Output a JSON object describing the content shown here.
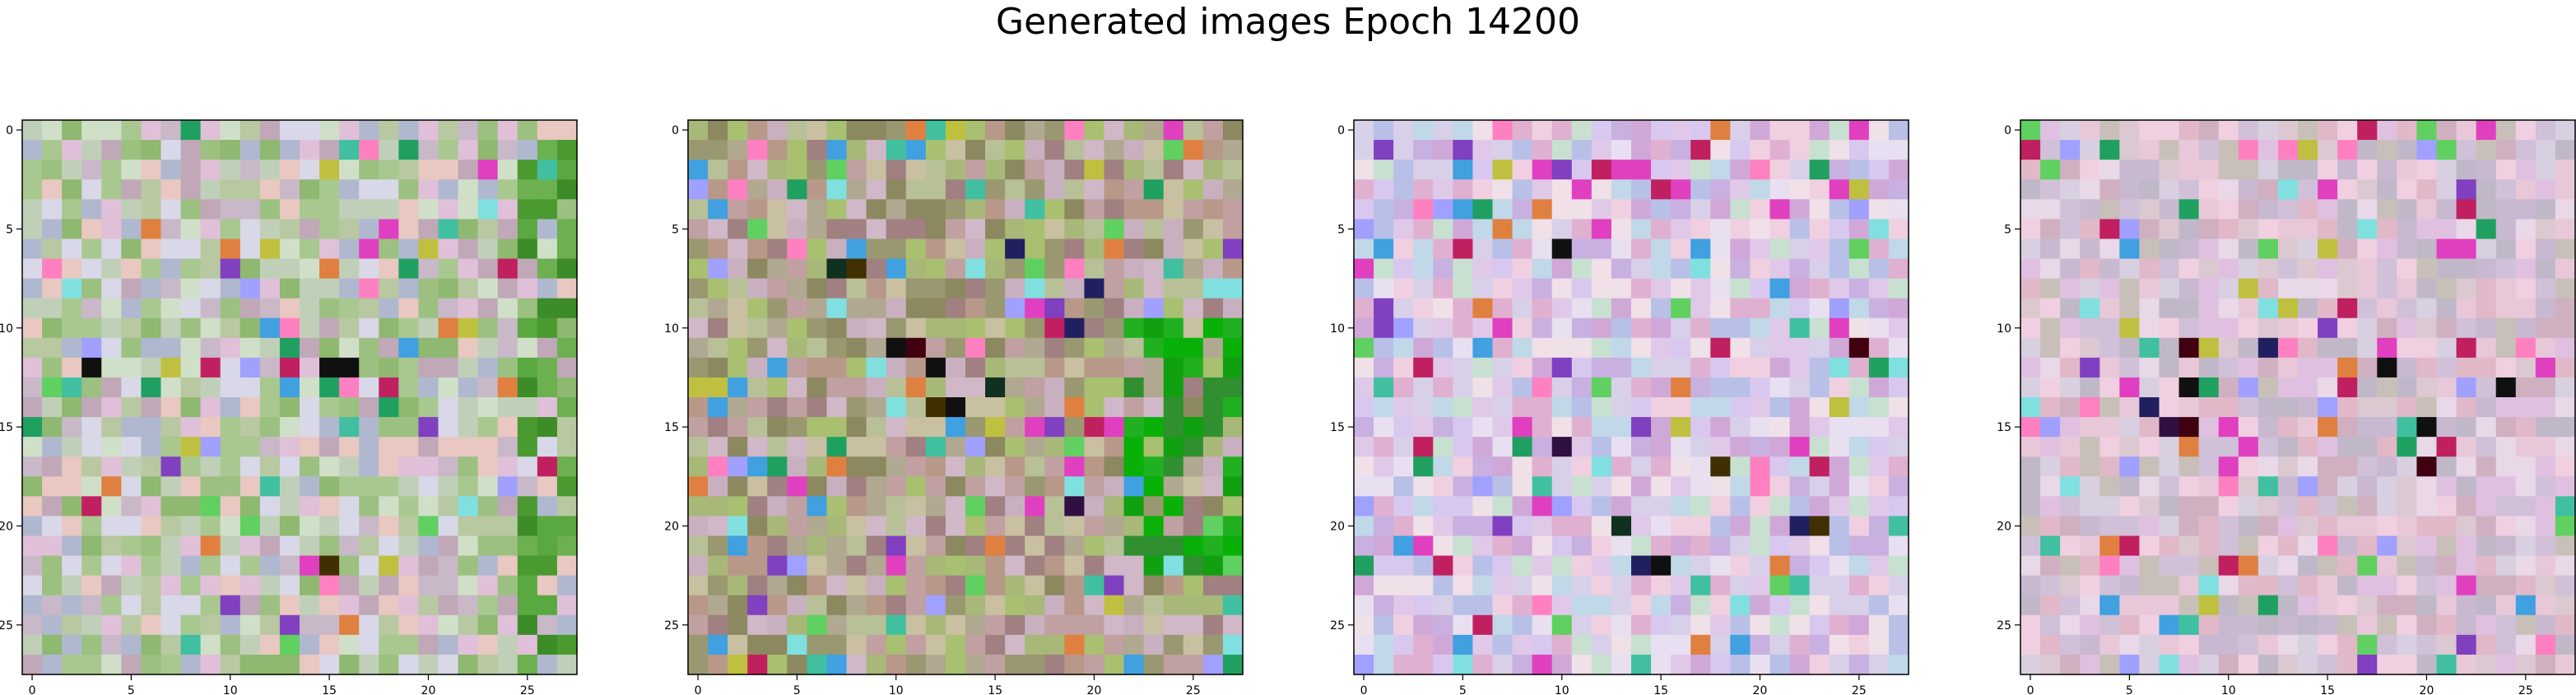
{
  "figure": {
    "title": "Generated images Epoch 14200"
  },
  "chart_data": [
    {
      "type": "heatmap",
      "index": 0,
      "rows": 28,
      "cols": 28,
      "xlim": [
        -0.5,
        27.5
      ],
      "ylim": [
        27.5,
        -0.5
      ],
      "xticks": [
        "0",
        "5",
        "10",
        "15",
        "20",
        "25"
      ],
      "yticks": [
        "0",
        "5",
        "10",
        "15",
        "20",
        "25"
      ],
      "tint": "green",
      "seed": 1,
      "dark_cells": [
        [
          12,
          3
        ],
        [
          12,
          15
        ],
        [
          12,
          16
        ],
        [
          22,
          15
        ]
      ]
    },
    {
      "type": "heatmap",
      "index": 1,
      "rows": 28,
      "cols": 28,
      "xlim": [
        -0.5,
        27.5
      ],
      "ylim": [
        27.5,
        -0.5
      ],
      "xticks": [
        "0",
        "5",
        "10",
        "15",
        "20",
        "25"
      ],
      "yticks": [
        "0",
        "5",
        "10",
        "15",
        "20",
        "25"
      ],
      "tint": "olive-dark",
      "seed": 2,
      "dark_cells": [
        [
          7,
          7
        ],
        [
          7,
          8
        ],
        [
          11,
          10
        ],
        [
          11,
          11
        ],
        [
          12,
          12
        ],
        [
          14,
          12
        ],
        [
          14,
          13
        ],
        [
          13,
          15
        ],
        [
          6,
          16
        ],
        [
          8,
          20
        ],
        [
          10,
          19
        ],
        [
          19,
          19
        ]
      ]
    },
    {
      "type": "heatmap",
      "index": 2,
      "rows": 28,
      "cols": 28,
      "xlim": [
        -0.5,
        27.5
      ],
      "ylim": [
        27.5,
        -0.5
      ],
      "xticks": [
        "0",
        "5",
        "10",
        "15",
        "20",
        "25"
      ],
      "yticks": [
        "0",
        "5",
        "10",
        "15",
        "20",
        "25"
      ],
      "tint": "pink",
      "seed": 3,
      "dark_cells": [
        [
          6,
          10
        ],
        [
          16,
          10
        ],
        [
          20,
          13
        ],
        [
          20,
          22
        ],
        [
          20,
          23
        ],
        [
          22,
          14
        ],
        [
          22,
          15
        ],
        [
          17,
          18
        ],
        [
          11,
          25
        ]
      ]
    },
    {
      "type": "heatmap",
      "index": 3,
      "rows": 28,
      "cols": 28,
      "xlim": [
        -0.5,
        27.5
      ],
      "ylim": [
        27.5,
        -0.5
      ],
      "xticks": [
        "0",
        "5",
        "10",
        "15",
        "20",
        "25"
      ],
      "yticks": [
        "0",
        "5",
        "10",
        "15",
        "20",
        "25"
      ],
      "tint": "pink-light",
      "seed": 4,
      "dark_cells": [
        [
          13,
          8
        ],
        [
          14,
          6
        ],
        [
          15,
          7
        ],
        [
          15,
          8
        ],
        [
          11,
          8
        ],
        [
          11,
          12
        ],
        [
          12,
          18
        ],
        [
          15,
          20
        ],
        [
          17,
          20
        ],
        [
          13,
          24
        ]
      ]
    }
  ]
}
